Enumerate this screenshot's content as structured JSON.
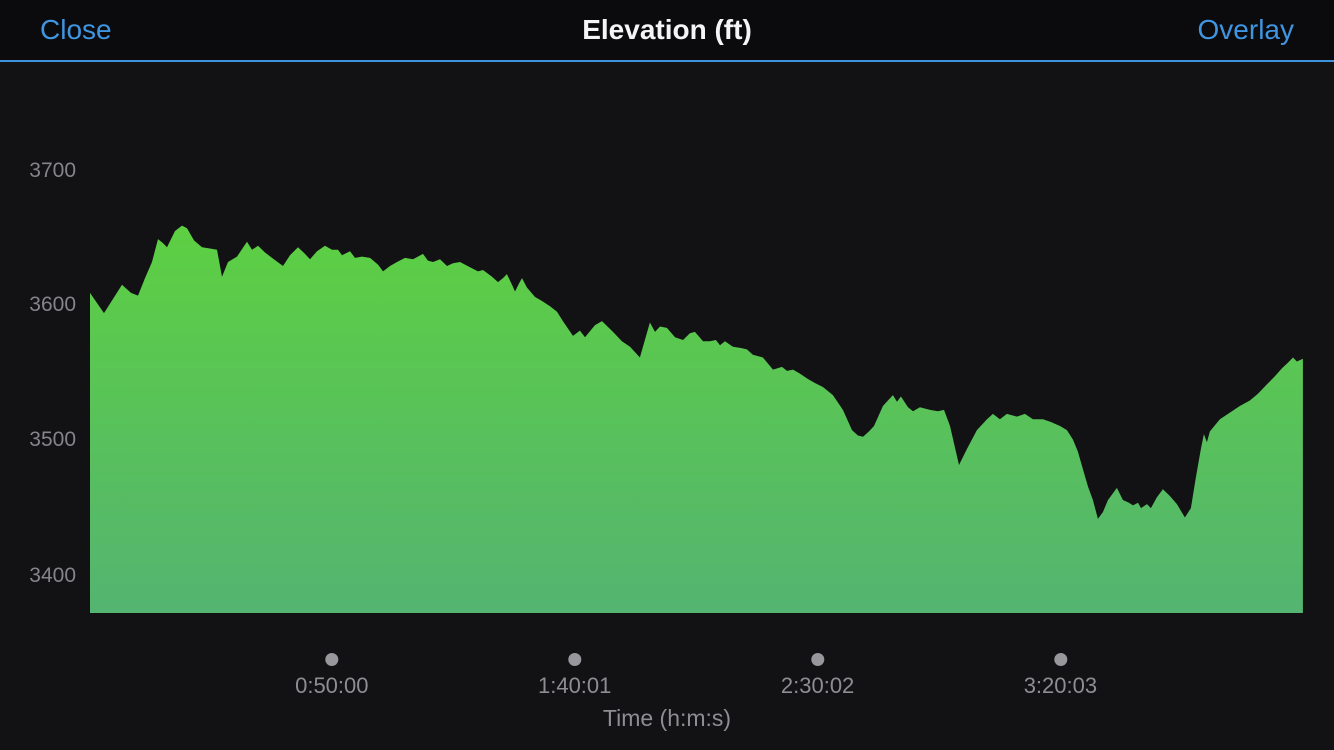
{
  "nav": {
    "close_label": "Close",
    "title": "Elevation (ft)",
    "overlay_label": "Overlay"
  },
  "colors": {
    "accent_blue": "#3f95e0",
    "nav_underline": "#3d93de",
    "area_gradient_top": "#5fd539",
    "area_gradient_bottom": "#54b471",
    "axis_text_gray": "#8d8d92",
    "tick_dot_gray": "#97979c",
    "background_dark": "#121214"
  },
  "chart_data": {
    "type": "area",
    "title": "Elevation (ft)",
    "xlabel": "Time (h:m:s)",
    "ylabel": "Elevation (ft)",
    "x_unit": "seconds",
    "xlim": [
      0,
      15000
    ],
    "ylim": [
      3371,
      3771
    ],
    "grid": false,
    "legend": false,
    "y_ticks": [
      {
        "value": 3700,
        "label": "3700"
      },
      {
        "value": 3600,
        "label": "3600"
      },
      {
        "value": 3500,
        "label": "3500"
      },
      {
        "value": 3400,
        "label": "3400"
      }
    ],
    "x_ticks": [
      {
        "t": 3000,
        "label": "0:50:00"
      },
      {
        "t": 6001,
        "label": "1:40:01"
      },
      {
        "t": 9002,
        "label": "2:30:02"
      },
      {
        "t": 12003,
        "label": "3:20:03"
      }
    ],
    "points": [
      [
        12,
        3609
      ],
      [
        185,
        3594
      ],
      [
        408,
        3615
      ],
      [
        519,
        3609
      ],
      [
        605,
        3607
      ],
      [
        692,
        3620
      ],
      [
        778,
        3632
      ],
      [
        853,
        3649
      ],
      [
        914,
        3646
      ],
      [
        964,
        3643
      ],
      [
        1063,
        3655
      ],
      [
        1149,
        3659
      ],
      [
        1211,
        3657
      ],
      [
        1297,
        3648
      ],
      [
        1396,
        3643
      ],
      [
        1495,
        3642
      ],
      [
        1581,
        3641
      ],
      [
        1643,
        3621
      ],
      [
        1717,
        3632
      ],
      [
        1829,
        3636
      ],
      [
        1952,
        3647
      ],
      [
        2014,
        3641
      ],
      [
        2088,
        3644
      ],
      [
        2175,
        3639
      ],
      [
        2261,
        3635
      ],
      [
        2397,
        3629
      ],
      [
        2483,
        3637
      ],
      [
        2582,
        3643
      ],
      [
        2669,
        3638
      ],
      [
        2731,
        3634
      ],
      [
        2817,
        3640
      ],
      [
        2916,
        3644
      ],
      [
        3002,
        3641
      ],
      [
        3076,
        3641
      ],
      [
        3126,
        3637
      ],
      [
        3225,
        3640
      ],
      [
        3287,
        3635
      ],
      [
        3373,
        3636
      ],
      [
        3472,
        3635
      ],
      [
        3571,
        3630
      ],
      [
        3633,
        3625
      ],
      [
        3719,
        3629
      ],
      [
        3805,
        3632
      ],
      [
        3904,
        3635
      ],
      [
        4003,
        3634
      ],
      [
        4127,
        3638
      ],
      [
        4188,
        3633
      ],
      [
        4250,
        3632
      ],
      [
        4337,
        3634
      ],
      [
        4423,
        3629
      ],
      [
        4497,
        3631
      ],
      [
        4584,
        3632
      ],
      [
        4707,
        3628
      ],
      [
        4806,
        3625
      ],
      [
        4868,
        3626
      ],
      [
        4979,
        3621
      ],
      [
        5053,
        3617
      ],
      [
        5115,
        3620
      ],
      [
        5164,
        3623
      ],
      [
        5226,
        3615
      ],
      [
        5263,
        3610
      ],
      [
        5313,
        3616
      ],
      [
        5350,
        3620
      ],
      [
        5411,
        3613
      ],
      [
        5510,
        3606
      ],
      [
        5597,
        3603
      ],
      [
        5696,
        3599
      ],
      [
        5782,
        3595
      ],
      [
        5856,
        3588
      ],
      [
        5980,
        3577
      ],
      [
        6066,
        3581
      ],
      [
        6128,
        3576
      ],
      [
        6251,
        3585
      ],
      [
        6338,
        3588
      ],
      [
        6474,
        3580
      ],
      [
        6585,
        3573
      ],
      [
        6684,
        3569
      ],
      [
        6807,
        3561
      ],
      [
        6931,
        3587
      ],
      [
        6993,
        3580
      ],
      [
        7055,
        3584
      ],
      [
        7141,
        3583
      ],
      [
        7240,
        3576
      ],
      [
        7339,
        3574
      ],
      [
        7425,
        3579
      ],
      [
        7487,
        3580
      ],
      [
        7586,
        3573
      ],
      [
        7672,
        3573
      ],
      [
        7746,
        3574
      ],
      [
        7796,
        3570
      ],
      [
        7858,
        3573
      ],
      [
        7956,
        3569
      ],
      [
        8055,
        3568
      ],
      [
        8129,
        3567
      ],
      [
        8203,
        3563
      ],
      [
        8327,
        3561
      ],
      [
        8451,
        3552
      ],
      [
        8562,
        3554
      ],
      [
        8624,
        3551
      ],
      [
        8698,
        3552
      ],
      [
        8784,
        3549
      ],
      [
        8883,
        3545
      ],
      [
        8969,
        3542
      ],
      [
        9068,
        3539
      ],
      [
        9192,
        3533
      ],
      [
        9315,
        3522
      ],
      [
        9427,
        3507
      ],
      [
        9501,
        3503
      ],
      [
        9563,
        3502
      ],
      [
        9637,
        3506
      ],
      [
        9699,
        3510
      ],
      [
        9810,
        3525
      ],
      [
        9933,
        3533
      ],
      [
        9983,
        3528
      ],
      [
        10032,
        3532
      ],
      [
        10119,
        3524
      ],
      [
        10181,
        3521
      ],
      [
        10267,
        3524
      ],
      [
        10391,
        3522
      ],
      [
        10490,
        3521
      ],
      [
        10564,
        3522
      ],
      [
        10638,
        3510
      ],
      [
        10749,
        3481
      ],
      [
        10848,
        3493
      ],
      [
        10971,
        3507
      ],
      [
        11095,
        3515
      ],
      [
        11169,
        3519
      ],
      [
        11255,
        3515
      ],
      [
        11342,
        3519
      ],
      [
        11465,
        3517
      ],
      [
        11564,
        3519
      ],
      [
        11663,
        3515
      ],
      [
        11787,
        3515
      ],
      [
        11885,
        3513
      ],
      [
        11997,
        3510
      ],
      [
        12083,
        3507
      ],
      [
        12157,
        3500
      ],
      [
        12219,
        3491
      ],
      [
        12281,
        3478
      ],
      [
        12343,
        3465
      ],
      [
        12404,
        3455
      ],
      [
        12466,
        3441
      ],
      [
        12528,
        3446
      ],
      [
        12590,
        3455
      ],
      [
        12701,
        3464
      ],
      [
        12775,
        3455
      ],
      [
        12849,
        3453
      ],
      [
        12899,
        3451
      ],
      [
        12961,
        3453
      ],
      [
        12998,
        3449
      ],
      [
        13072,
        3452
      ],
      [
        13121,
        3449
      ],
      [
        13195,
        3457
      ],
      [
        13269,
        3463
      ],
      [
        13356,
        3458
      ],
      [
        13442,
        3452
      ],
      [
        13541,
        3442
      ],
      [
        13615,
        3449
      ],
      [
        13677,
        3472
      ],
      [
        13739,
        3493
      ],
      [
        13776,
        3504
      ],
      [
        13813,
        3498
      ],
      [
        13850,
        3506
      ],
      [
        13973,
        3515
      ],
      [
        14097,
        3520
      ],
      [
        14221,
        3525
      ],
      [
        14344,
        3529
      ],
      [
        14443,
        3534
      ],
      [
        14554,
        3541
      ],
      [
        14653,
        3547
      ],
      [
        14740,
        3553
      ],
      [
        14814,
        3557
      ],
      [
        14876,
        3561
      ],
      [
        14925,
        3558
      ],
      [
        14999,
        3560
      ]
    ]
  }
}
